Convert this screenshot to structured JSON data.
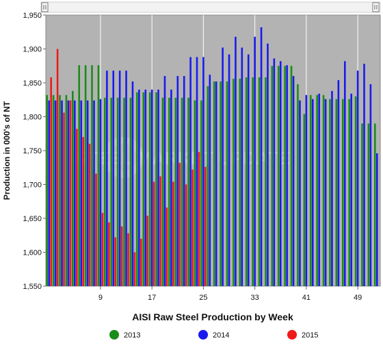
{
  "chart_data": {
    "type": "bar",
    "title": "",
    "xlabel": "AISI Raw Steel Production by Week",
    "ylabel": "Production in 000's of NT",
    "ylim": [
      1550,
      1950
    ],
    "yticks": [
      1550,
      1600,
      1650,
      1700,
      1750,
      1800,
      1850,
      1900,
      1950
    ],
    "ytick_labels": [
      "1,550",
      "1,600",
      "1,650",
      "1,700",
      "1,750",
      "1,800",
      "1,850",
      "1,900",
      "1,950"
    ],
    "xticks": [
      9,
      17,
      25,
      33,
      41,
      49
    ],
    "xlim": [
      1,
      52
    ],
    "grid": "vertical",
    "legend_position": "bottom",
    "watermark": "STEEL MARKET UPDATE",
    "series": [
      {
        "name": "2013",
        "color": "#1a8c1a",
        "values": [
          1832,
          1832,
          1832,
          1832,
          1838,
          1876,
          1876,
          1876,
          1876,
          1828,
          1828,
          1828,
          1828,
          1828,
          1836,
          1836,
          1836,
          1836,
          1828,
          1828,
          1828,
          1828,
          1828,
          1824,
          1824,
          1845,
          1852,
          1852,
          1852,
          1856,
          1856,
          1858,
          1858,
          1858,
          1858,
          1875,
          1875,
          1875,
          1875,
          1848,
          1804,
          1832,
          1832,
          1832,
          1826,
          1826,
          1826,
          1826,
          1830,
          1790,
          1790,
          1790
        ]
      },
      {
        "name": "2014",
        "color": "#1a1aee",
        "values": [
          1824,
          1824,
          1824,
          1824,
          1824,
          1824,
          1824,
          1824,
          1826,
          1868,
          1868,
          1868,
          1868,
          1852,
          1840,
          1840,
          1840,
          1840,
          1860,
          1840,
          1860,
          1860,
          1888,
          1888,
          1888,
          1862,
          1852,
          1902,
          1892,
          1918,
          1902,
          1892,
          1918,
          1932,
          1908,
          1886,
          1882,
          1876,
          1860,
          1824,
          1832,
          1826,
          1834,
          1826,
          1838,
          1854,
          1882,
          1834,
          1868,
          1878,
          1848,
          1746
        ]
      },
      {
        "name": "2015",
        "color": "#ee1a1a",
        "values": [
          1858,
          1900,
          1806,
          1824,
          1782,
          1770,
          1760,
          1716,
          1658,
          1644,
          1622,
          1638,
          1628,
          1600,
          1620,
          1654,
          1704,
          1712,
          1666,
          1704,
          1732,
          1700,
          1722,
          1748,
          1726
        ]
      }
    ]
  }
}
